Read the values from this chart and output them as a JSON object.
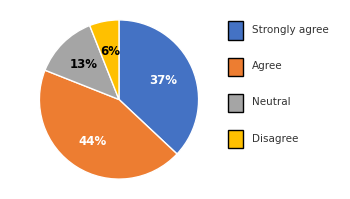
{
  "labels": [
    "Strongly agree",
    "Agree",
    "Neutral",
    "Disagree"
  ],
  "values": [
    37,
    44,
    13,
    6
  ],
  "colors": [
    "#4472C4",
    "#ED7D31",
    "#A5A5A5",
    "#FFC000"
  ],
  "pct_labels": [
    "37%",
    "44%",
    "13%",
    "6%"
  ],
  "startangle": 90,
  "counterclock": false,
  "legend_labels": [
    "Strongly agree",
    "Agree",
    "Neutral",
    "Disagree"
  ],
  "label_colors": [
    "white",
    "white",
    "black",
    "black"
  ],
  "label_r": [
    0.6,
    0.62,
    0.62,
    0.62
  ]
}
